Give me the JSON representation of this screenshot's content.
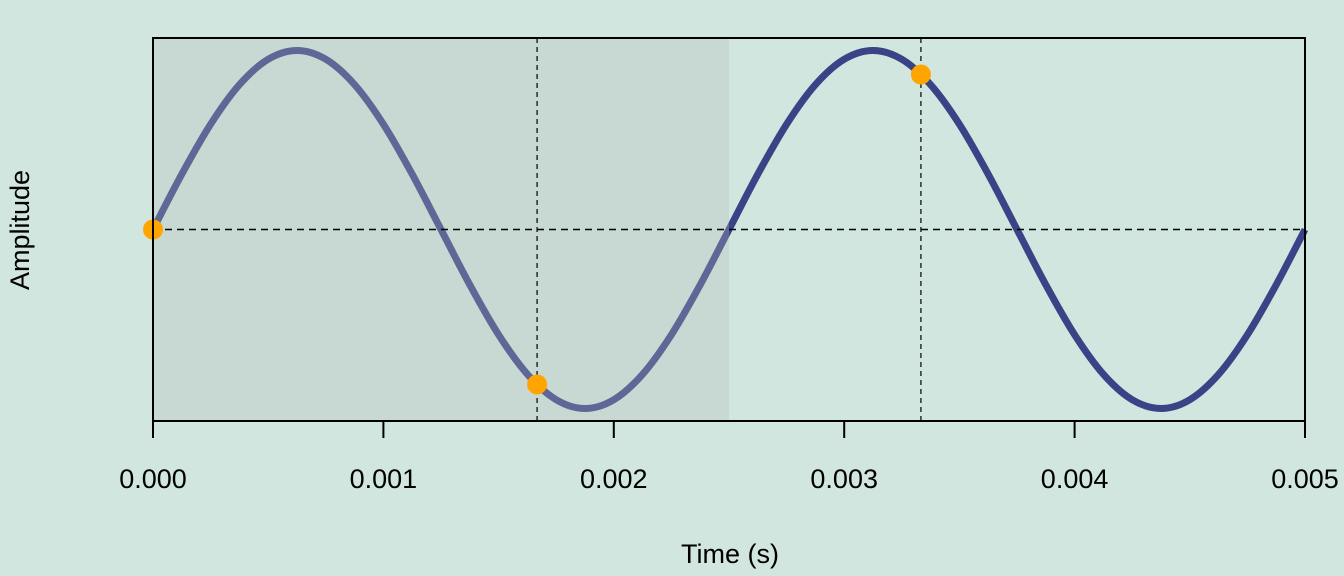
{
  "chart_data": {
    "type": "line",
    "xlabel": "Time (s)",
    "ylabel": "Amplitude",
    "x": [
      0,
      0.000125,
      0.00025,
      0.000375,
      0.0005,
      0.000625,
      0.00075,
      0.000875,
      0.001,
      0.001125,
      0.00125,
      0.001375,
      0.0015,
      0.001625,
      0.00175,
      0.001875,
      0.002,
      0.002125,
      0.00225,
      0.002375,
      0.0025,
      0.002625,
      0.00275,
      0.002875,
      0.003,
      0.003125,
      0.00325,
      0.003375,
      0.0035,
      0.003625,
      0.00375,
      0.003875,
      0.004,
      0.004125,
      0.00425,
      0.004375,
      0.0045,
      0.004625,
      0.00475,
      0.004875,
      0.005
    ],
    "series": [
      {
        "color": "#3b4387",
        "values": [
          0,
          0.309,
          0.588,
          0.809,
          0.951,
          1,
          0.951,
          0.809,
          0.588,
          0.309,
          0,
          -0.309,
          -0.588,
          -0.809,
          -0.951,
          -1,
          -0.951,
          -0.809,
          -0.588,
          -0.309,
          0,
          0.309,
          0.588,
          0.809,
          0.951,
          1,
          0.951,
          0.809,
          0.588,
          0.309,
          0,
          -0.309,
          -0.588,
          -0.809,
          -0.951,
          -1,
          -0.951,
          -0.809,
          -0.588,
          -0.309,
          0
        ]
      }
    ],
    "samples": {
      "color": "#ffa500",
      "x": [
        0,
        0.001667,
        0.003333
      ],
      "values": [
        0,
        -0.866,
        0.866
      ]
    },
    "shade": [
      0,
      0.0025
    ],
    "hline": 0,
    "xlim": [
      0,
      0.005
    ],
    "ylim": [
      -1.07,
      1.07
    ],
    "xticks": [
      {
        "value": 0,
        "label": "0.000"
      },
      {
        "value": 0.001,
        "label": "0.001"
      },
      {
        "value": 0.002,
        "label": "0.002"
      },
      {
        "value": 0.003,
        "label": "0.003"
      },
      {
        "value": 0.004,
        "label": "0.004"
      },
      {
        "value": 0.005,
        "label": "0.005"
      }
    ]
  }
}
